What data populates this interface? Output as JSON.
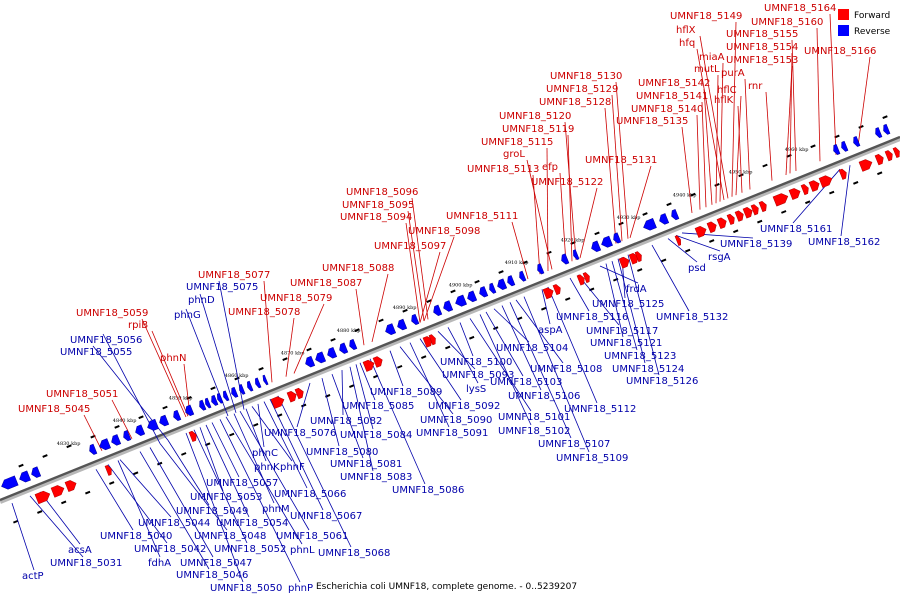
{
  "caption": "Escherichia coli UMNF18, complete genome. - 0..5239207",
  "legend": [
    {
      "label": "Forward",
      "color": "#ff0000"
    },
    {
      "label": "Reverse",
      "color": "#0000ff"
    }
  ],
  "axis_ticks": [
    "4830 kbp",
    "4840 kbp",
    "4850 kbp",
    "4860 kbp",
    "4870 kbp",
    "4880 kbp",
    "4890 kbp",
    "4900 kbp",
    "4910 kbp",
    "4920 kbp",
    "4930 kbp",
    "4940 kbp",
    "4950 kbp",
    "4960 kbp"
  ],
  "forward_labels": [
    "UMNF18_5045",
    "UMNF18_5051",
    "UMNF18_5059",
    "rpiB",
    "phnN",
    "UMNF18_5077",
    "UMNF18_5078",
    "UMNF18_5079",
    "UMNF18_5087",
    "UMNF18_5088",
    "UMNF18_5094",
    "UMNF18_5095",
    "UMNF18_5096",
    "UMNF18_5097",
    "UMNF18_5098",
    "UMNF18_5111",
    "UMNF18_5113",
    "UMNF18_5115",
    "groL",
    "efp",
    "UMNF18_5119",
    "UMNF18_5120",
    "UMNF18_5122",
    "UMNF18_5128",
    "UMNF18_5129",
    "UMNF18_5130",
    "UMNF18_5131",
    "UMNF18_5135",
    "UMNF18_5140",
    "UMNF18_5141",
    "UMNF18_5142",
    "mutL",
    "miaA",
    "hfq",
    "hflX",
    "UMNF18_5149",
    "hflC",
    "hflK",
    "purA",
    "rnr",
    "UMNF18_5153",
    "UMNF18_5154",
    "UMNF18_5155",
    "UMNF18_5160",
    "UMNF18_5164",
    "UMNF18_5166"
  ],
  "reverse_labels": [
    "actP",
    "acsA",
    "UMNF18_5031",
    "UMNF18_5040",
    "UMNF18_5042",
    "fdhA",
    "UMNF18_5044",
    "UMNF18_5046",
    "UMNF18_5047",
    "UMNF18_5048",
    "UMNF18_5049",
    "UMNF18_5050",
    "UMNF18_5052",
    "UMNF18_5053",
    "UMNF18_5054",
    "UMNF18_5055",
    "UMNF18_5056",
    "UMNF18_5057",
    "phnP",
    "phnL",
    "phnM",
    "UMNF18_5061",
    "phnK",
    "phnF",
    "phnC",
    "UMNF18_5066",
    "UMNF18_5067",
    "UMNF18_5068",
    "phnG",
    "phnD",
    "UMNF18_5075",
    "UMNF18_5076",
    "UMNF18_5080",
    "UMNF18_5081",
    "UMNF18_5082",
    "UMNF18_5083",
    "UMNF18_5084",
    "UMNF18_5085",
    "UMNF18_5086",
    "UMNF18_5089",
    "UMNF18_5090",
    "UMNF18_5091",
    "UMNF18_5092",
    "UMNF18_5093",
    "lysS",
    "UMNF18_5100",
    "UMNF18_5101",
    "UMNF18_5102",
    "UMNF18_5103",
    "UMNF18_5104",
    "UMNF18_5106",
    "UMNF18_5107",
    "UMNF18_5108",
    "UMNF18_5109",
    "aspA",
    "UMNF18_5112",
    "UMNF18_5116",
    "UMNF18_5117",
    "frdA",
    "UMNF18_5121",
    "UMNF18_5123",
    "UMNF18_5124",
    "UMNF18_5125",
    "UMNF18_5126",
    "UMNF18_5132",
    "psd",
    "rsgA",
    "UMNF18_5139",
    "UMNF18_5161",
    "UMNF18_5162"
  ]
}
